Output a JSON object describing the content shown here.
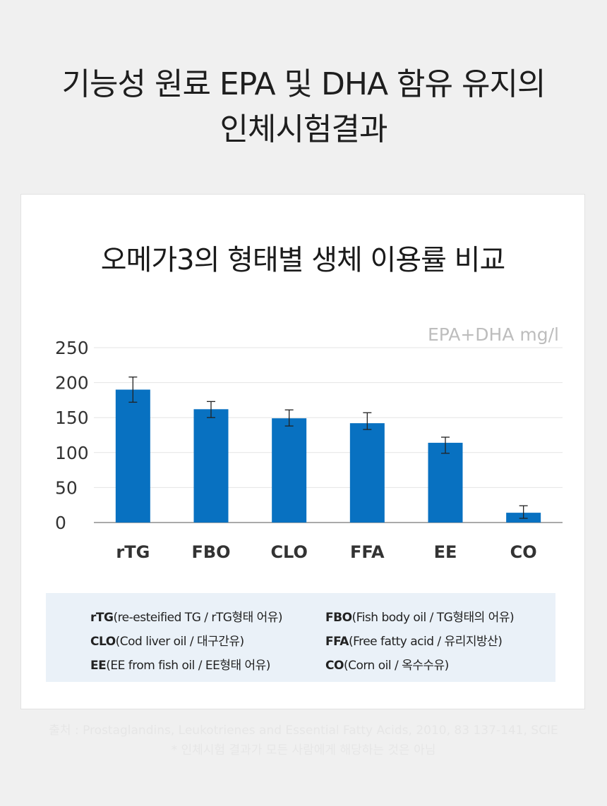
{
  "header": {
    "title_line1": "기능성 원료 EPA 및 DHA 함유 유지의",
    "title_line2": "인체시험결과"
  },
  "chart_data": {
    "type": "bar",
    "title": "오메가3의 형태별 생체 이용률 비교",
    "unit_label": "EPA+DHA mg/l",
    "categories": [
      "rTG",
      "FBO",
      "CLO",
      "FFA",
      "EE",
      "CO"
    ],
    "values": [
      190,
      162,
      149,
      142,
      114,
      14
    ],
    "error_low": [
      172,
      150,
      138,
      133,
      99,
      6
    ],
    "error_high": [
      208,
      173,
      161,
      157,
      122,
      24
    ],
    "ylim": [
      0,
      250
    ],
    "yticks": [
      "0",
      "50",
      "100",
      "150",
      "200",
      "250"
    ],
    "grid": true,
    "bar_color": "#0871c1"
  },
  "legend": {
    "items": [
      {
        "abbr": "rTG",
        "desc": "(re-esteified TG / rTG형태 어유)"
      },
      {
        "abbr": "FBO",
        "desc": "(Fish body oil / TG형태의 어유)"
      },
      {
        "abbr": "CLO",
        "desc": "(Cod liver oil / 대구간유)"
      },
      {
        "abbr": "FFA",
        "desc": "(Free fatty acid / 유리지방산)"
      },
      {
        "abbr": "EE",
        "desc": "(EE from fish oil / EE형태 어유)"
      },
      {
        "abbr": "CO",
        "desc": "(Corn oil / 옥수수유)"
      }
    ]
  },
  "footer": {
    "source": "출처 : Prostaglandins, Leukotrienes and Essential Fatty Acids, 2010, 83 137-141, SCIE",
    "note": "* 인체시험 결과가 모든 사람에게 해당하는 것은 아님"
  }
}
